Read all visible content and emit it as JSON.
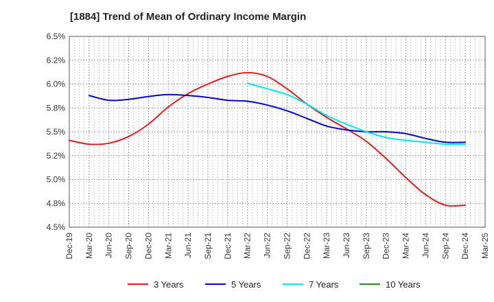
{
  "chart_data": {
    "type": "line",
    "title": "[1884]  Trend of Mean of Ordinary Income Margin",
    "xlabel": "",
    "ylabel": "",
    "ylim": [
      4.5,
      6.5
    ],
    "yticks": [
      4.5,
      4.75,
      5.0,
      5.25,
      5.5,
      5.75,
      6.0,
      6.25,
      6.5
    ],
    "ytick_labels": [
      "4.5%",
      "4.8%",
      "5.0%",
      "5.2%",
      "5.5%",
      "5.8%",
      "6.0%",
      "6.2%",
      "6.5%"
    ],
    "x": [
      "Dec-19",
      "Mar-20",
      "Jun-20",
      "Sep-20",
      "Dec-20",
      "Mar-21",
      "Jun-21",
      "Sep-21",
      "Dec-21",
      "Mar-22",
      "Jun-22",
      "Sep-22",
      "Dec-22",
      "Mar-23",
      "Jun-23",
      "Sep-23",
      "Dec-23",
      "Mar-24",
      "Jun-24",
      "Sep-24",
      "Dec-24",
      "Mar-25"
    ],
    "grid": true,
    "legend_position": "bottom",
    "series": [
      {
        "name": "3 Years",
        "color": "#e31a1c",
        "values": [
          5.41,
          5.37,
          5.38,
          5.45,
          5.58,
          5.76,
          5.9,
          6.0,
          6.08,
          6.12,
          6.08,
          5.95,
          5.79,
          5.65,
          5.53,
          5.4,
          5.22,
          5.02,
          4.84,
          4.73,
          4.73,
          null
        ]
      },
      {
        "name": "5 Years",
        "color": "#0000cc",
        "values": [
          null,
          5.88,
          5.83,
          5.84,
          5.87,
          5.89,
          5.88,
          5.86,
          5.83,
          5.82,
          5.78,
          5.72,
          5.64,
          5.56,
          5.52,
          5.5,
          5.5,
          5.48,
          5.43,
          5.39,
          5.39,
          null
        ]
      },
      {
        "name": "7 Years",
        "color": "#00e5ee",
        "values": [
          null,
          null,
          null,
          null,
          null,
          null,
          null,
          null,
          null,
          6.01,
          5.95,
          5.89,
          5.79,
          5.67,
          5.58,
          5.5,
          5.44,
          5.41,
          5.39,
          5.37,
          5.37,
          null
        ]
      },
      {
        "name": "10 Years",
        "color": "#228b22",
        "values": [
          null,
          null,
          null,
          null,
          null,
          null,
          null,
          null,
          null,
          null,
          null,
          null,
          null,
          null,
          null,
          null,
          null,
          null,
          null,
          null,
          null,
          null
        ]
      }
    ]
  }
}
